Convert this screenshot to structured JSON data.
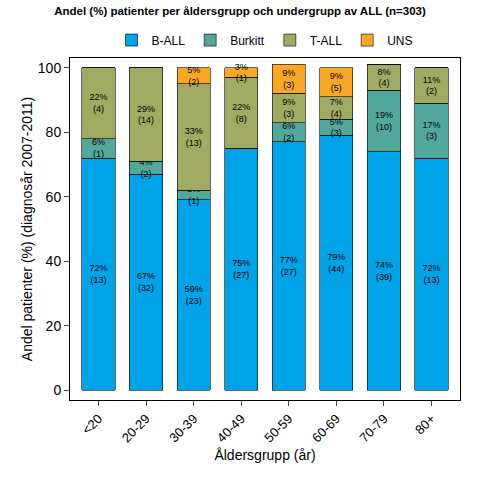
{
  "chart_data": {
    "type": "bar",
    "title": "Andel (%) patienter per åldersgrupp och undergrupp av ALL (n=303)",
    "x_label": "Åldersgrupp (år)",
    "y_label": "Andel patienter (%) (diagnosår 2007-2011)",
    "categories": [
      "<20",
      "20-29",
      "30-39",
      "40-49",
      "50-59",
      "60-69",
      "70-79",
      "80+"
    ],
    "stacked": true,
    "data_labels": true,
    "grid": false,
    "legend": "top",
    "ylim": [
      -3,
      103
    ],
    "yticks": [
      0,
      20,
      40,
      60,
      80,
      100
    ],
    "series": [
      {
        "name": "B-ALL",
        "color": "#00A2E8",
        "values": [
          72,
          67,
          59,
          75,
          77,
          79,
          74,
          72
        ],
        "value_labels": [
          "72%",
          "67%",
          "59%",
          "75%",
          "77%",
          "79%",
          "74%",
          "72%"
        ],
        "counts": [
          13,
          32,
          23,
          27,
          27,
          44,
          39,
          13
        ],
        "count_labels": [
          "(13)",
          "(32)",
          "(23)",
          "(27)",
          "(27)",
          "(44)",
          "(39)",
          "(13)"
        ]
      },
      {
        "name": "Burkitt",
        "color": "#52A99B",
        "values": [
          6,
          4,
          3,
          0,
          6,
          5,
          19,
          17
        ],
        "value_labels": [
          "6%",
          "4%",
          "3%",
          null,
          "6%",
          "5%",
          "19%",
          "17%"
        ],
        "counts": [
          1,
          2,
          1,
          0,
          2,
          3,
          10,
          3
        ],
        "count_labels": [
          "(1)",
          "(2)",
          "(1)",
          null,
          "(2)",
          "(3)",
          "(10)",
          "(3)"
        ]
      },
      {
        "name": "T-ALL",
        "color": "#A0AA62",
        "values": [
          22,
          29,
          33,
          22,
          9,
          7,
          8,
          11
        ],
        "value_labels": [
          "22%",
          "29%",
          "33%",
          "22%",
          "9%",
          "7%",
          "8%",
          "11%"
        ],
        "counts": [
          4,
          14,
          13,
          8,
          3,
          4,
          4,
          2
        ],
        "count_labels": [
          "(4)",
          "(14)",
          "(13)",
          "(8)",
          "(3)",
          "(4)",
          "(4)",
          "(2)"
        ]
      },
      {
        "name": "UNS",
        "color": "#F9A825",
        "values": [
          0,
          0,
          5,
          3,
          9,
          9,
          0,
          0
        ],
        "value_labels": [
          null,
          null,
          "5%",
          "3%",
          "9%",
          "9%",
          null,
          null
        ],
        "counts": [
          0,
          0,
          2,
          1,
          3,
          5,
          0,
          0
        ],
        "count_labels": [
          null,
          null,
          "(2)",
          "(1)",
          "(3)",
          "(5)",
          null,
          null
        ]
      }
    ]
  }
}
